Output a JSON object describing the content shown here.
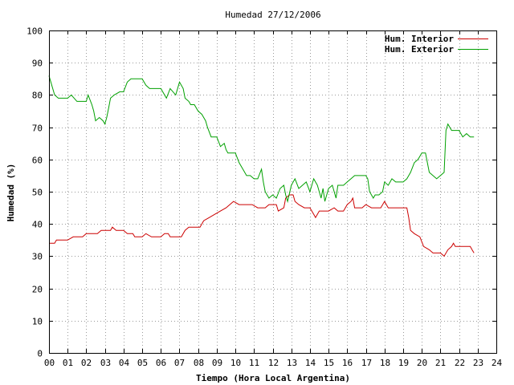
{
  "colors": {
    "interior": "#cc0000",
    "exterior": "#00a000"
  },
  "chart_data": {
    "type": "line",
    "title": "Humedad 27/12/2006",
    "xlabel": "Tiempo (Hora Local Argentina)",
    "ylabel": "Humedad (%)",
    "xlim": [
      0,
      24
    ],
    "ylim": [
      0,
      100
    ],
    "grid": true,
    "legend_position": "top-right",
    "x_tick_labels": [
      "00",
      "01",
      "02",
      "03",
      "04",
      "05",
      "06",
      "07",
      "08",
      "09",
      "10",
      "11",
      "12",
      "13",
      "14",
      "15",
      "16",
      "17",
      "18",
      "19",
      "20",
      "21",
      "22",
      "23",
      "24"
    ],
    "y_tick_labels": [
      "0",
      "10",
      "20",
      "30",
      "40",
      "50",
      "60",
      "70",
      "80",
      "90",
      "100"
    ],
    "series": [
      {
        "name": "Hum. Interior",
        "points": [
          [
            0.0,
            34
          ],
          [
            0.3,
            34
          ],
          [
            0.4,
            35
          ],
          [
            1.0,
            35
          ],
          [
            1.3,
            36
          ],
          [
            1.8,
            36
          ],
          [
            2.0,
            37
          ],
          [
            2.6,
            37
          ],
          [
            2.8,
            38
          ],
          [
            3.3,
            38
          ],
          [
            3.4,
            39
          ],
          [
            3.6,
            38
          ],
          [
            4.0,
            38
          ],
          [
            4.2,
            37
          ],
          [
            4.5,
            37
          ],
          [
            4.6,
            36
          ],
          [
            5.0,
            36
          ],
          [
            5.2,
            37
          ],
          [
            5.5,
            36
          ],
          [
            6.0,
            36
          ],
          [
            6.2,
            37
          ],
          [
            6.4,
            37
          ],
          [
            6.5,
            36
          ],
          [
            7.1,
            36
          ],
          [
            7.3,
            38
          ],
          [
            7.5,
            39
          ],
          [
            8.1,
            39
          ],
          [
            8.3,
            41
          ],
          [
            8.6,
            42
          ],
          [
            8.9,
            43
          ],
          [
            9.2,
            44
          ],
          [
            9.5,
            45
          ],
          [
            9.7,
            46
          ],
          [
            9.9,
            47
          ],
          [
            10.2,
            46
          ],
          [
            10.6,
            46
          ],
          [
            10.9,
            46
          ],
          [
            11.2,
            45
          ],
          [
            11.6,
            45
          ],
          [
            11.8,
            46
          ],
          [
            12.2,
            46
          ],
          [
            12.3,
            44
          ],
          [
            12.6,
            45
          ],
          [
            12.7,
            48
          ],
          [
            12.9,
            49
          ],
          [
            13.1,
            49
          ],
          [
            13.2,
            47
          ],
          [
            13.4,
            46
          ],
          [
            13.7,
            45
          ],
          [
            14.0,
            45
          ],
          [
            14.2,
            43
          ],
          [
            14.3,
            42
          ],
          [
            14.5,
            44
          ],
          [
            15.0,
            44
          ],
          [
            15.3,
            45
          ],
          [
            15.5,
            44
          ],
          [
            15.8,
            44
          ],
          [
            16.0,
            46
          ],
          [
            16.2,
            47
          ],
          [
            16.3,
            48
          ],
          [
            16.4,
            45
          ],
          [
            16.8,
            45
          ],
          [
            17.0,
            46
          ],
          [
            17.3,
            45
          ],
          [
            17.8,
            45
          ],
          [
            18.0,
            47
          ],
          [
            18.2,
            45
          ],
          [
            18.8,
            45
          ],
          [
            19.0,
            45
          ],
          [
            19.2,
            45
          ],
          [
            19.3,
            42
          ],
          [
            19.4,
            38
          ],
          [
            19.6,
            37
          ],
          [
            19.9,
            36
          ],
          [
            20.1,
            33
          ],
          [
            20.4,
            32
          ],
          [
            20.6,
            31
          ],
          [
            21.0,
            31
          ],
          [
            21.2,
            30
          ],
          [
            21.4,
            32
          ],
          [
            21.6,
            33
          ],
          [
            21.7,
            34
          ],
          [
            21.8,
            33
          ],
          [
            22.6,
            33
          ],
          [
            22.7,
            32
          ],
          [
            22.8,
            31
          ]
        ]
      },
      {
        "name": "Hum. Exterior",
        "points": [
          [
            0.0,
            86
          ],
          [
            0.1,
            84
          ],
          [
            0.3,
            80
          ],
          [
            0.5,
            79
          ],
          [
            1.0,
            79
          ],
          [
            1.2,
            80
          ],
          [
            1.5,
            78
          ],
          [
            2.0,
            78
          ],
          [
            2.1,
            80
          ],
          [
            2.3,
            77
          ],
          [
            2.4,
            75
          ],
          [
            2.5,
            72
          ],
          [
            2.7,
            73
          ],
          [
            2.9,
            72
          ],
          [
            3.0,
            71
          ],
          [
            3.1,
            73
          ],
          [
            3.2,
            76
          ],
          [
            3.3,
            79
          ],
          [
            3.5,
            80
          ],
          [
            3.8,
            81
          ],
          [
            4.0,
            81
          ],
          [
            4.2,
            84
          ],
          [
            4.4,
            85
          ],
          [
            5.0,
            85
          ],
          [
            5.2,
            83
          ],
          [
            5.4,
            82
          ],
          [
            6.0,
            82
          ],
          [
            6.2,
            80
          ],
          [
            6.3,
            79
          ],
          [
            6.5,
            82
          ],
          [
            6.8,
            80
          ],
          [
            7.0,
            84
          ],
          [
            7.2,
            82
          ],
          [
            7.3,
            79
          ],
          [
            7.5,
            78
          ],
          [
            7.6,
            77
          ],
          [
            7.8,
            77
          ],
          [
            8.0,
            75
          ],
          [
            8.2,
            74
          ],
          [
            8.4,
            72
          ],
          [
            8.5,
            70
          ],
          [
            8.7,
            67
          ],
          [
            9.0,
            67
          ],
          [
            9.2,
            64
          ],
          [
            9.4,
            65
          ],
          [
            9.5,
            63
          ],
          [
            9.6,
            62
          ],
          [
            9.8,
            62
          ],
          [
            10.0,
            62
          ],
          [
            10.2,
            59
          ],
          [
            10.4,
            57
          ],
          [
            10.6,
            55
          ],
          [
            10.8,
            55
          ],
          [
            11.0,
            54
          ],
          [
            11.2,
            54
          ],
          [
            11.4,
            57
          ],
          [
            11.5,
            53
          ],
          [
            11.6,
            50
          ],
          [
            11.8,
            48
          ],
          [
            12.0,
            49
          ],
          [
            12.2,
            48
          ],
          [
            12.4,
            51
          ],
          [
            12.6,
            52
          ],
          [
            12.7,
            49
          ],
          [
            12.8,
            47
          ],
          [
            13.0,
            52
          ],
          [
            13.2,
            54
          ],
          [
            13.4,
            51
          ],
          [
            13.6,
            52
          ],
          [
            13.8,
            53
          ],
          [
            14.0,
            50
          ],
          [
            14.2,
            54
          ],
          [
            14.4,
            52
          ],
          [
            14.6,
            48
          ],
          [
            14.7,
            51
          ],
          [
            14.8,
            47
          ],
          [
            15.0,
            51
          ],
          [
            15.2,
            52
          ],
          [
            15.4,
            48
          ],
          [
            15.5,
            52
          ],
          [
            15.8,
            52
          ],
          [
            16.0,
            53
          ],
          [
            16.2,
            54
          ],
          [
            16.4,
            55
          ],
          [
            16.8,
            55
          ],
          [
            17.0,
            55
          ],
          [
            17.1,
            54
          ],
          [
            17.2,
            50
          ],
          [
            17.4,
            48
          ],
          [
            17.5,
            49
          ],
          [
            17.7,
            49
          ],
          [
            17.9,
            50
          ],
          [
            18.0,
            53
          ],
          [
            18.2,
            52
          ],
          [
            18.4,
            54
          ],
          [
            18.6,
            53
          ],
          [
            18.8,
            53
          ],
          [
            19.0,
            53
          ],
          [
            19.2,
            54
          ],
          [
            19.4,
            56
          ],
          [
            19.6,
            59
          ],
          [
            19.8,
            60
          ],
          [
            20.0,
            62
          ],
          [
            20.2,
            62
          ],
          [
            20.4,
            56
          ],
          [
            20.6,
            55
          ],
          [
            20.8,
            54
          ],
          [
            21.0,
            55
          ],
          [
            21.2,
            56
          ],
          [
            21.3,
            69
          ],
          [
            21.4,
            71
          ],
          [
            21.6,
            69
          ],
          [
            22.0,
            69
          ],
          [
            22.2,
            67
          ],
          [
            22.4,
            68
          ],
          [
            22.6,
            67
          ],
          [
            22.8,
            67
          ]
        ]
      }
    ]
  }
}
